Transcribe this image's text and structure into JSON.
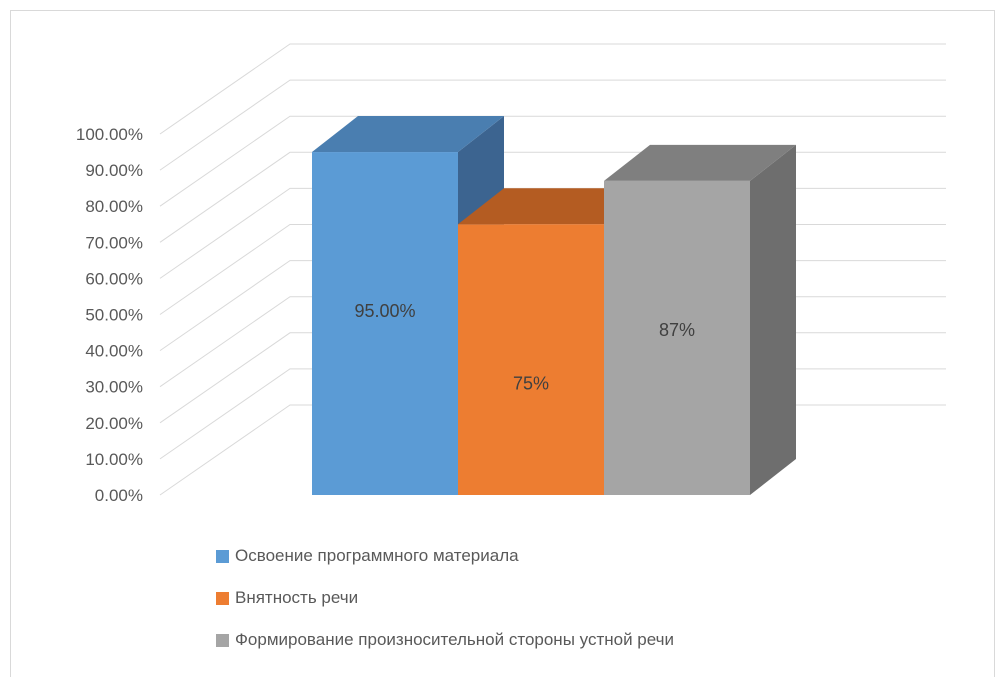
{
  "chart_data": {
    "type": "bar",
    "title": "",
    "xlabel": "",
    "ylabel": "",
    "ylim": [
      0,
      1
    ],
    "y_ticks": [
      "0.00%",
      "10.00%",
      "20.00%",
      "30.00%",
      "40.00%",
      "50.00%",
      "60.00%",
      "70.00%",
      "80.00%",
      "90.00%",
      "100.00%"
    ],
    "grid": true,
    "three_d": true,
    "legend_position": "bottom",
    "series": [
      {
        "name": "Освоение программного материала",
        "value": 0.95,
        "label": "95.00%",
        "color": "#5b9bd5",
        "top_color": "#4a7eb0",
        "side_color": "#3c6490"
      },
      {
        "name": "Внятность речи",
        "value": 0.75,
        "label": "75%",
        "color": "#ed7d31",
        "top_color": "#b45c22",
        "side_color": "#9e4f1c"
      },
      {
        "name": "Формирование произносительной стороны устной речи",
        "value": 0.87,
        "label": "87%",
        "color": "#a5a5a5",
        "top_color": "#7f7f7f",
        "side_color": "#6e6e6e"
      }
    ]
  }
}
